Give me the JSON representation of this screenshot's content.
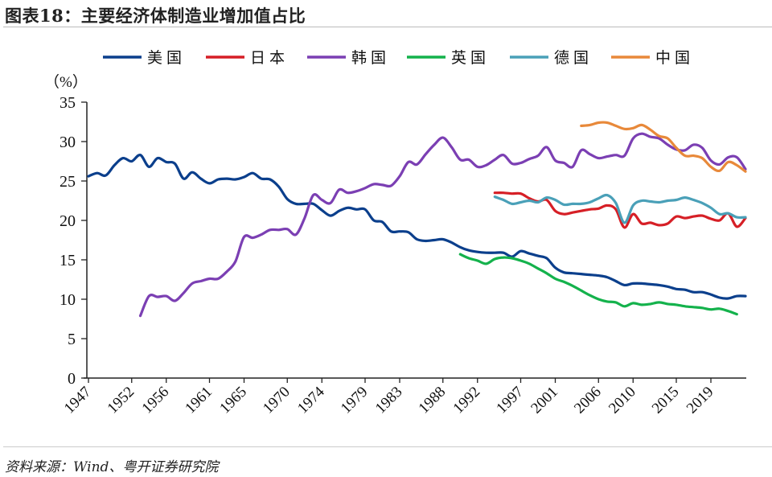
{
  "header": {
    "title": "图表18：主要经济体制造业增加值占比"
  },
  "footer": {
    "source": "资料来源：Wind、粤开证券研究院"
  },
  "chart_data": {
    "type": "line",
    "title": "",
    "ylabel": "（%）",
    "xlabel": "",
    "ylim": [
      0,
      35
    ],
    "yticks": [
      "0",
      "5",
      "10",
      "15",
      "20",
      "25",
      "30",
      "35"
    ],
    "xlim": [
      1947,
      2023
    ],
    "xticks": [
      "1947",
      "1952",
      "1956",
      "1961",
      "1965",
      "1970",
      "1974",
      "1979",
      "1983",
      "1988",
      "1992",
      "1997",
      "2001",
      "2006",
      "2010",
      "2015",
      "2019"
    ],
    "grid": false,
    "legend_position": "top",
    "series": [
      {
        "name": "美国",
        "color": "#0b3f8c",
        "start": 1947,
        "values": [
          25.6,
          26.0,
          25.7,
          27.0,
          27.9,
          27.5,
          28.3,
          26.8,
          27.9,
          27.4,
          27.2,
          25.3,
          26.1,
          25.3,
          24.7,
          25.2,
          25.3,
          25.2,
          25.5,
          26.0,
          25.3,
          25.2,
          24.3,
          22.7,
          22.1,
          22.1,
          22.1,
          21.3,
          20.6,
          21.2,
          21.6,
          21.4,
          21.4,
          20.0,
          19.8,
          18.6,
          18.6,
          18.5,
          17.6,
          17.4,
          17.5,
          17.6,
          17.2,
          16.6,
          16.2,
          16.0,
          15.9,
          15.9,
          15.9,
          15.4,
          16.1,
          15.8,
          15.5,
          15.2,
          14.0,
          13.4,
          13.3,
          13.2,
          13.1,
          13.0,
          12.8,
          12.3,
          11.8,
          12.0,
          12.0,
          11.9,
          11.8,
          11.6,
          11.3,
          11.2,
          10.9,
          10.9,
          10.6,
          10.2,
          10.1,
          10.4,
          10.4
        ]
      },
      {
        "name": "日本",
        "color": "#d61f26",
        "start": 1994,
        "values": [
          23.5,
          23.5,
          23.4,
          23.4,
          22.8,
          22.4,
          22.6,
          21.2,
          20.8,
          21.0,
          21.2,
          21.4,
          21.5,
          21.9,
          21.4,
          19.1,
          20.8,
          19.6,
          19.7,
          19.4,
          19.6,
          20.5,
          20.3,
          20.5,
          20.6,
          20.2,
          20.0,
          20.9,
          19.2,
          20.3
        ]
      },
      {
        "name": "韩国",
        "color": "#7b3fb3",
        "start": 1953,
        "values": [
          7.9,
          10.4,
          10.3,
          10.4,
          9.8,
          10.8,
          12.0,
          12.3,
          12.6,
          12.6,
          13.5,
          14.8,
          17.9,
          17.8,
          18.2,
          18.8,
          18.8,
          18.9,
          18.2,
          20.3,
          23.2,
          22.6,
          22.2,
          23.9,
          23.5,
          23.7,
          24.1,
          24.6,
          24.5,
          24.4,
          25.6,
          27.4,
          27.1,
          28.4,
          29.6,
          30.5,
          29.3,
          27.7,
          27.7,
          26.8,
          27.0,
          27.7,
          28.3,
          27.2,
          27.3,
          27.8,
          28.2,
          29.3,
          27.6,
          27.3,
          26.8,
          28.9,
          28.4,
          27.9,
          28.1,
          28.3,
          28.2,
          30.4,
          31.0,
          30.6,
          30.4,
          29.6,
          29.0,
          28.9,
          29.6,
          29.2,
          27.6,
          27.1,
          28.0,
          28.0,
          26.5
        ]
      },
      {
        "name": "英国",
        "color": "#14b24c",
        "start": 1990,
        "values": [
          15.7,
          15.2,
          14.9,
          14.5,
          15.1,
          15.3,
          15.2,
          14.9,
          14.5,
          13.9,
          13.3,
          12.6,
          12.2,
          11.7,
          11.1,
          10.5,
          10.0,
          9.7,
          9.6,
          9.1,
          9.5,
          9.3,
          9.4,
          9.6,
          9.4,
          9.3,
          9.1,
          9.0,
          8.9,
          8.7,
          8.8,
          8.5,
          8.1
        ]
      },
      {
        "name": "德国",
        "color": "#4aa0b8",
        "start": 1994,
        "values": [
          23.0,
          22.6,
          22.1,
          22.3,
          22.5,
          22.3,
          22.9,
          22.6,
          22.0,
          22.1,
          22.1,
          22.3,
          22.8,
          23.2,
          22.2,
          19.7,
          21.9,
          22.5,
          22.4,
          22.3,
          22.5,
          22.6,
          22.9,
          22.6,
          22.2,
          21.6,
          20.8,
          20.9,
          20.4,
          20.4
        ]
      },
      {
        "name": "中国",
        "color": "#e8893a",
        "start": 2004,
        "values": [
          32.0,
          32.1,
          32.4,
          32.4,
          32.0,
          31.6,
          31.7,
          32.1,
          31.5,
          30.7,
          30.4,
          29.2,
          28.2,
          28.2,
          27.9,
          26.8,
          26.3,
          27.4,
          27.0,
          26.2
        ]
      }
    ]
  }
}
